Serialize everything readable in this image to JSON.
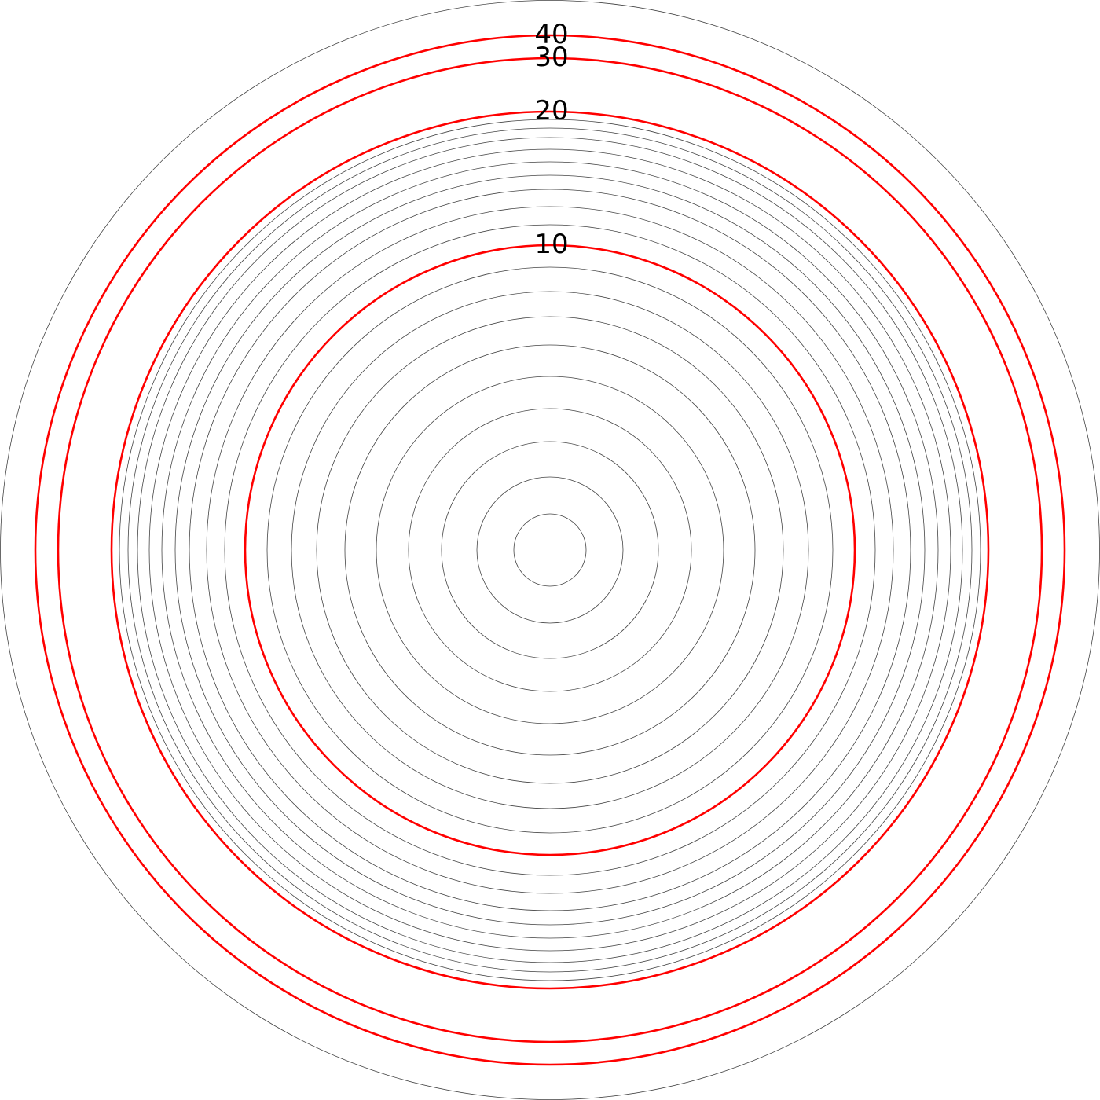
{
  "diagram": {
    "type": "concentric-rings",
    "levels": [
      1,
      2,
      3,
      4,
      5,
      6,
      7,
      8,
      9,
      10,
      11,
      12,
      13,
      14,
      15,
      16,
      17,
      18,
      19,
      20,
      30,
      40
    ],
    "highlighted_levels": [
      10,
      20,
      30,
      40
    ],
    "labels": [
      "10",
      "20",
      "30",
      "40"
    ],
    "colors": {
      "ring": "#444444",
      "highlight": "#ff0000",
      "label": "#000000",
      "background": "#ffffff"
    }
  }
}
